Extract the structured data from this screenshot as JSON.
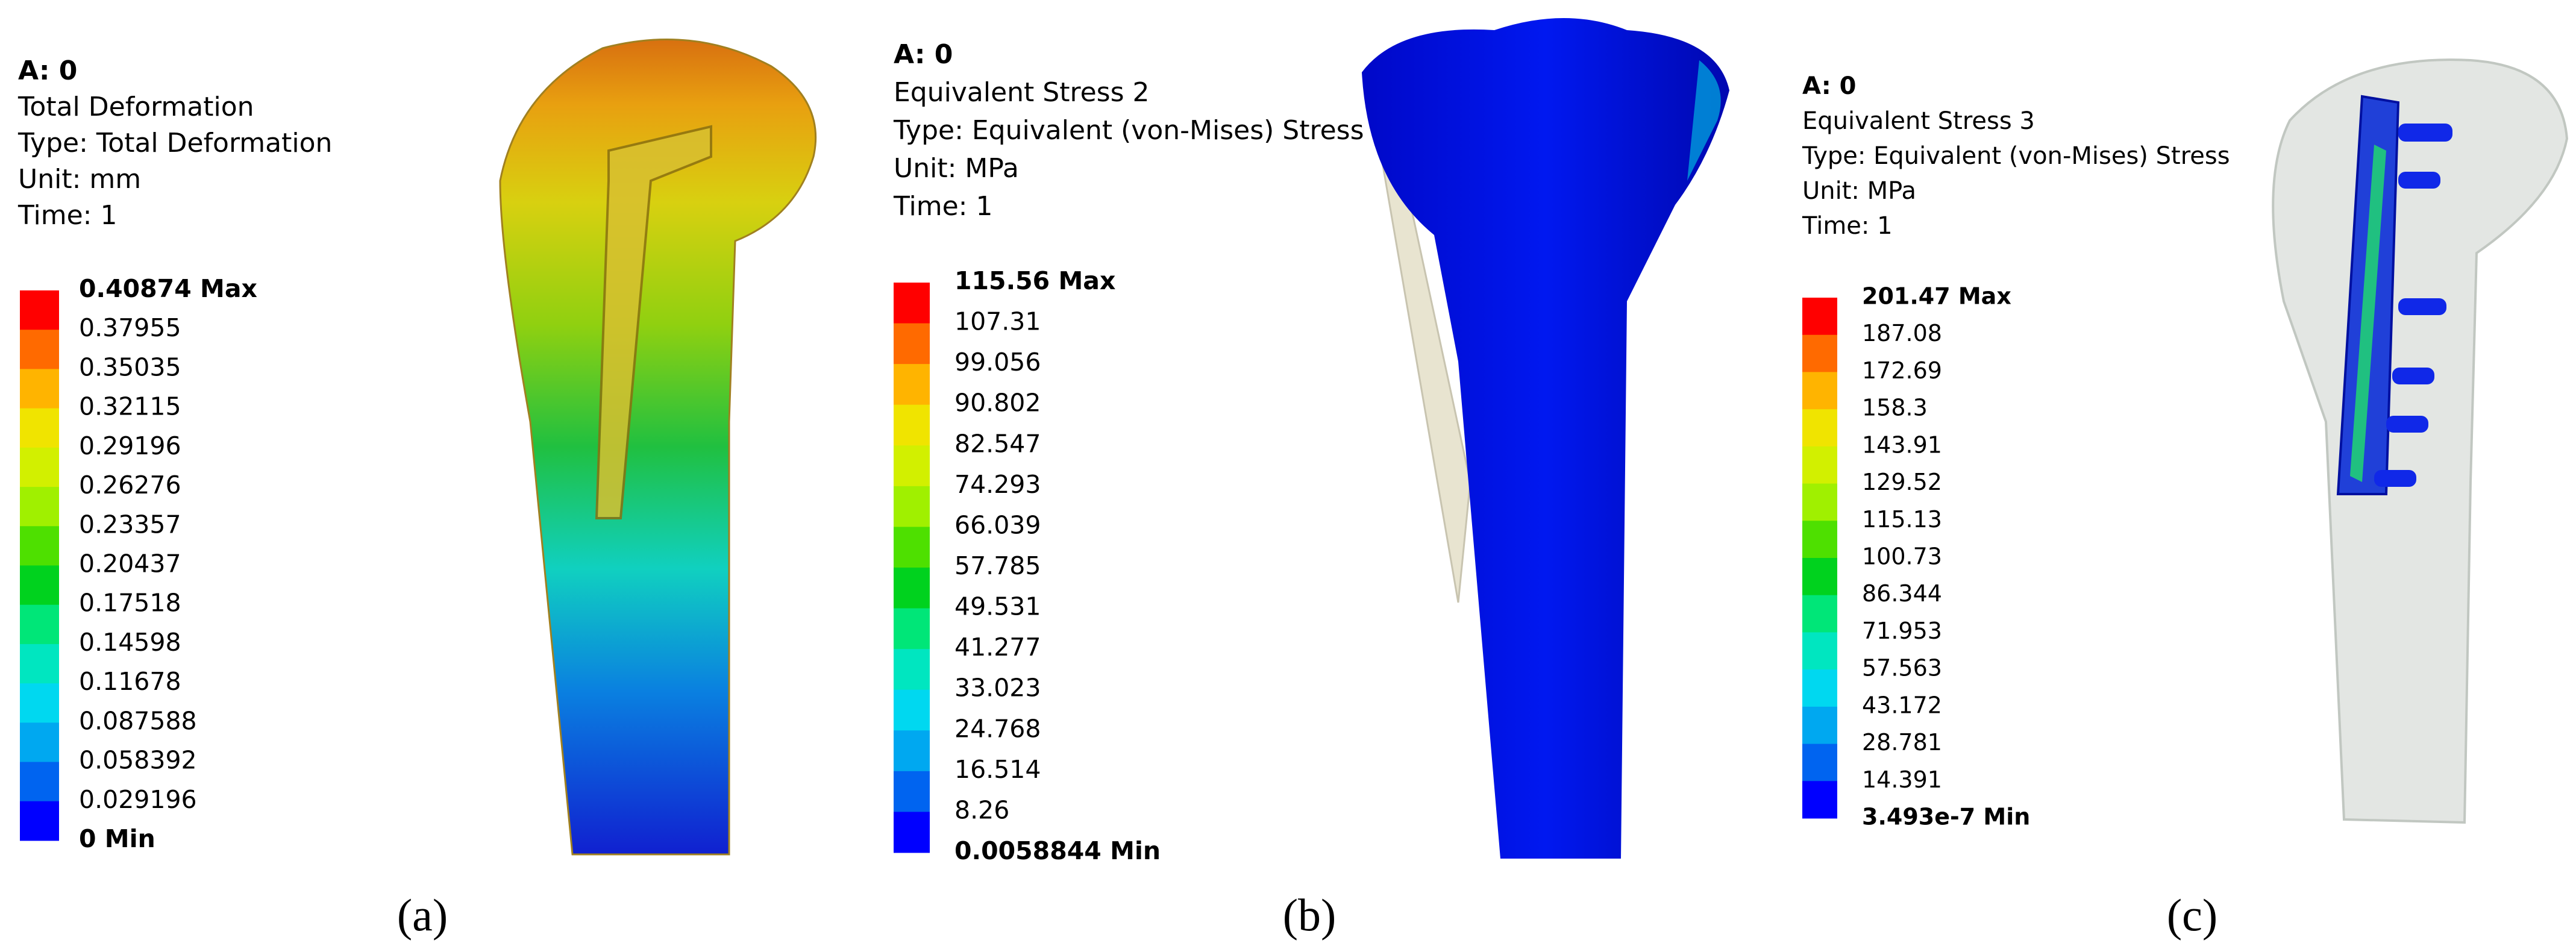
{
  "panels": [
    {
      "header": [
        "A: 0",
        "Total Deformation",
        "Type: Total Deformation",
        "Unit: mm",
        "Time: 1"
      ],
      "legend": [
        "0.40874 Max",
        "0.37955",
        "0.35035",
        "0.32115",
        "0.29196",
        "0.26276",
        "0.23357",
        "0.20437",
        "0.17518",
        "0.14598",
        "0.11678",
        "0.087588",
        "0.058392",
        "0.029196",
        "0 Min"
      ],
      "caption": "(a)"
    },
    {
      "header": [
        "A: 0",
        "Equivalent Stress 2",
        "Type: Equivalent (von-Mises) Stress",
        "Unit: MPa",
        "Time: 1"
      ],
      "legend": [
        "115.56 Max",
        "107.31",
        "99.056",
        "90.802",
        "82.547",
        "74.293",
        "66.039",
        "57.785",
        "49.531",
        "41.277",
        "33.023",
        "24.768",
        "16.514",
        "8.26",
        "0.0058844 Min"
      ],
      "caption": "(b)"
    },
    {
      "header": [
        "A: 0",
        "Equivalent Stress 3",
        "Type: Equivalent (von-Mises) Stress",
        "Unit: MPa",
        "Time: 1"
      ],
      "legend": [
        "201.47 Max",
        "187.08",
        "172.69",
        "158.3",
        "143.91",
        "129.52",
        "115.13",
        "100.73",
        "86.344",
        "71.953",
        "57.563",
        "43.172",
        "28.781",
        "14.391",
        "3.493e-7 Min"
      ],
      "caption": "(c)"
    }
  ],
  "legend_colors": [
    "#ff0000",
    "#ff6a00",
    "#ffb400",
    "#f0e400",
    "#d2f000",
    "#a0f000",
    "#4ee000",
    "#00d21e",
    "#00e678",
    "#00e6c0",
    "#00d8f0",
    "#00a8f0",
    "#0064f0",
    "#0000ff"
  ]
}
